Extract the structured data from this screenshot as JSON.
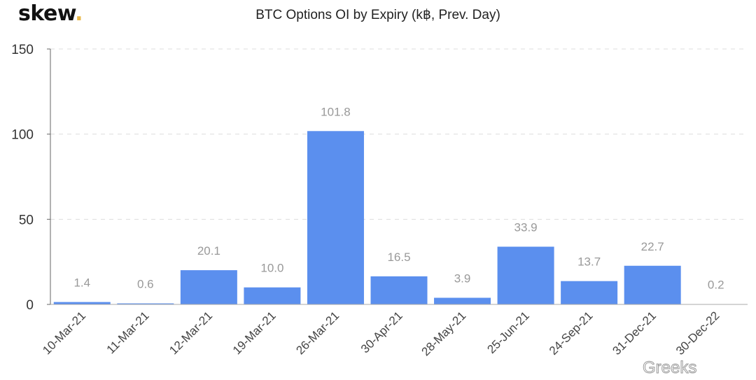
{
  "logo": {
    "text": "skew",
    "dot": "."
  },
  "watermark": "Greeks",
  "chart_data": {
    "type": "bar",
    "title": "BTC Options OI by Expiry (k฿, Prev. Day)",
    "xlabel": "",
    "ylabel": "",
    "ylim": [
      0,
      150
    ],
    "yticks": [
      0,
      50,
      100,
      150
    ],
    "grid": true,
    "bar_color": "#5b8fee",
    "categories": [
      "10-Mar-21",
      "11-Mar-21",
      "12-Mar-21",
      "19-Mar-21",
      "26-Mar-21",
      "30-Apr-21",
      "28-May-21",
      "25-Jun-21",
      "24-Sep-21",
      "31-Dec-21",
      "30-Dec-22"
    ],
    "values": [
      1.4,
      0.6,
      20.1,
      10.0,
      101.8,
      16.5,
      3.9,
      33.9,
      13.7,
      22.7,
      0.2
    ],
    "value_labels": [
      "1.4",
      "0.6",
      "20.1",
      "10.0",
      "101.8",
      "16.5",
      "3.9",
      "33.9",
      "13.7",
      "22.7",
      "0.2"
    ]
  }
}
